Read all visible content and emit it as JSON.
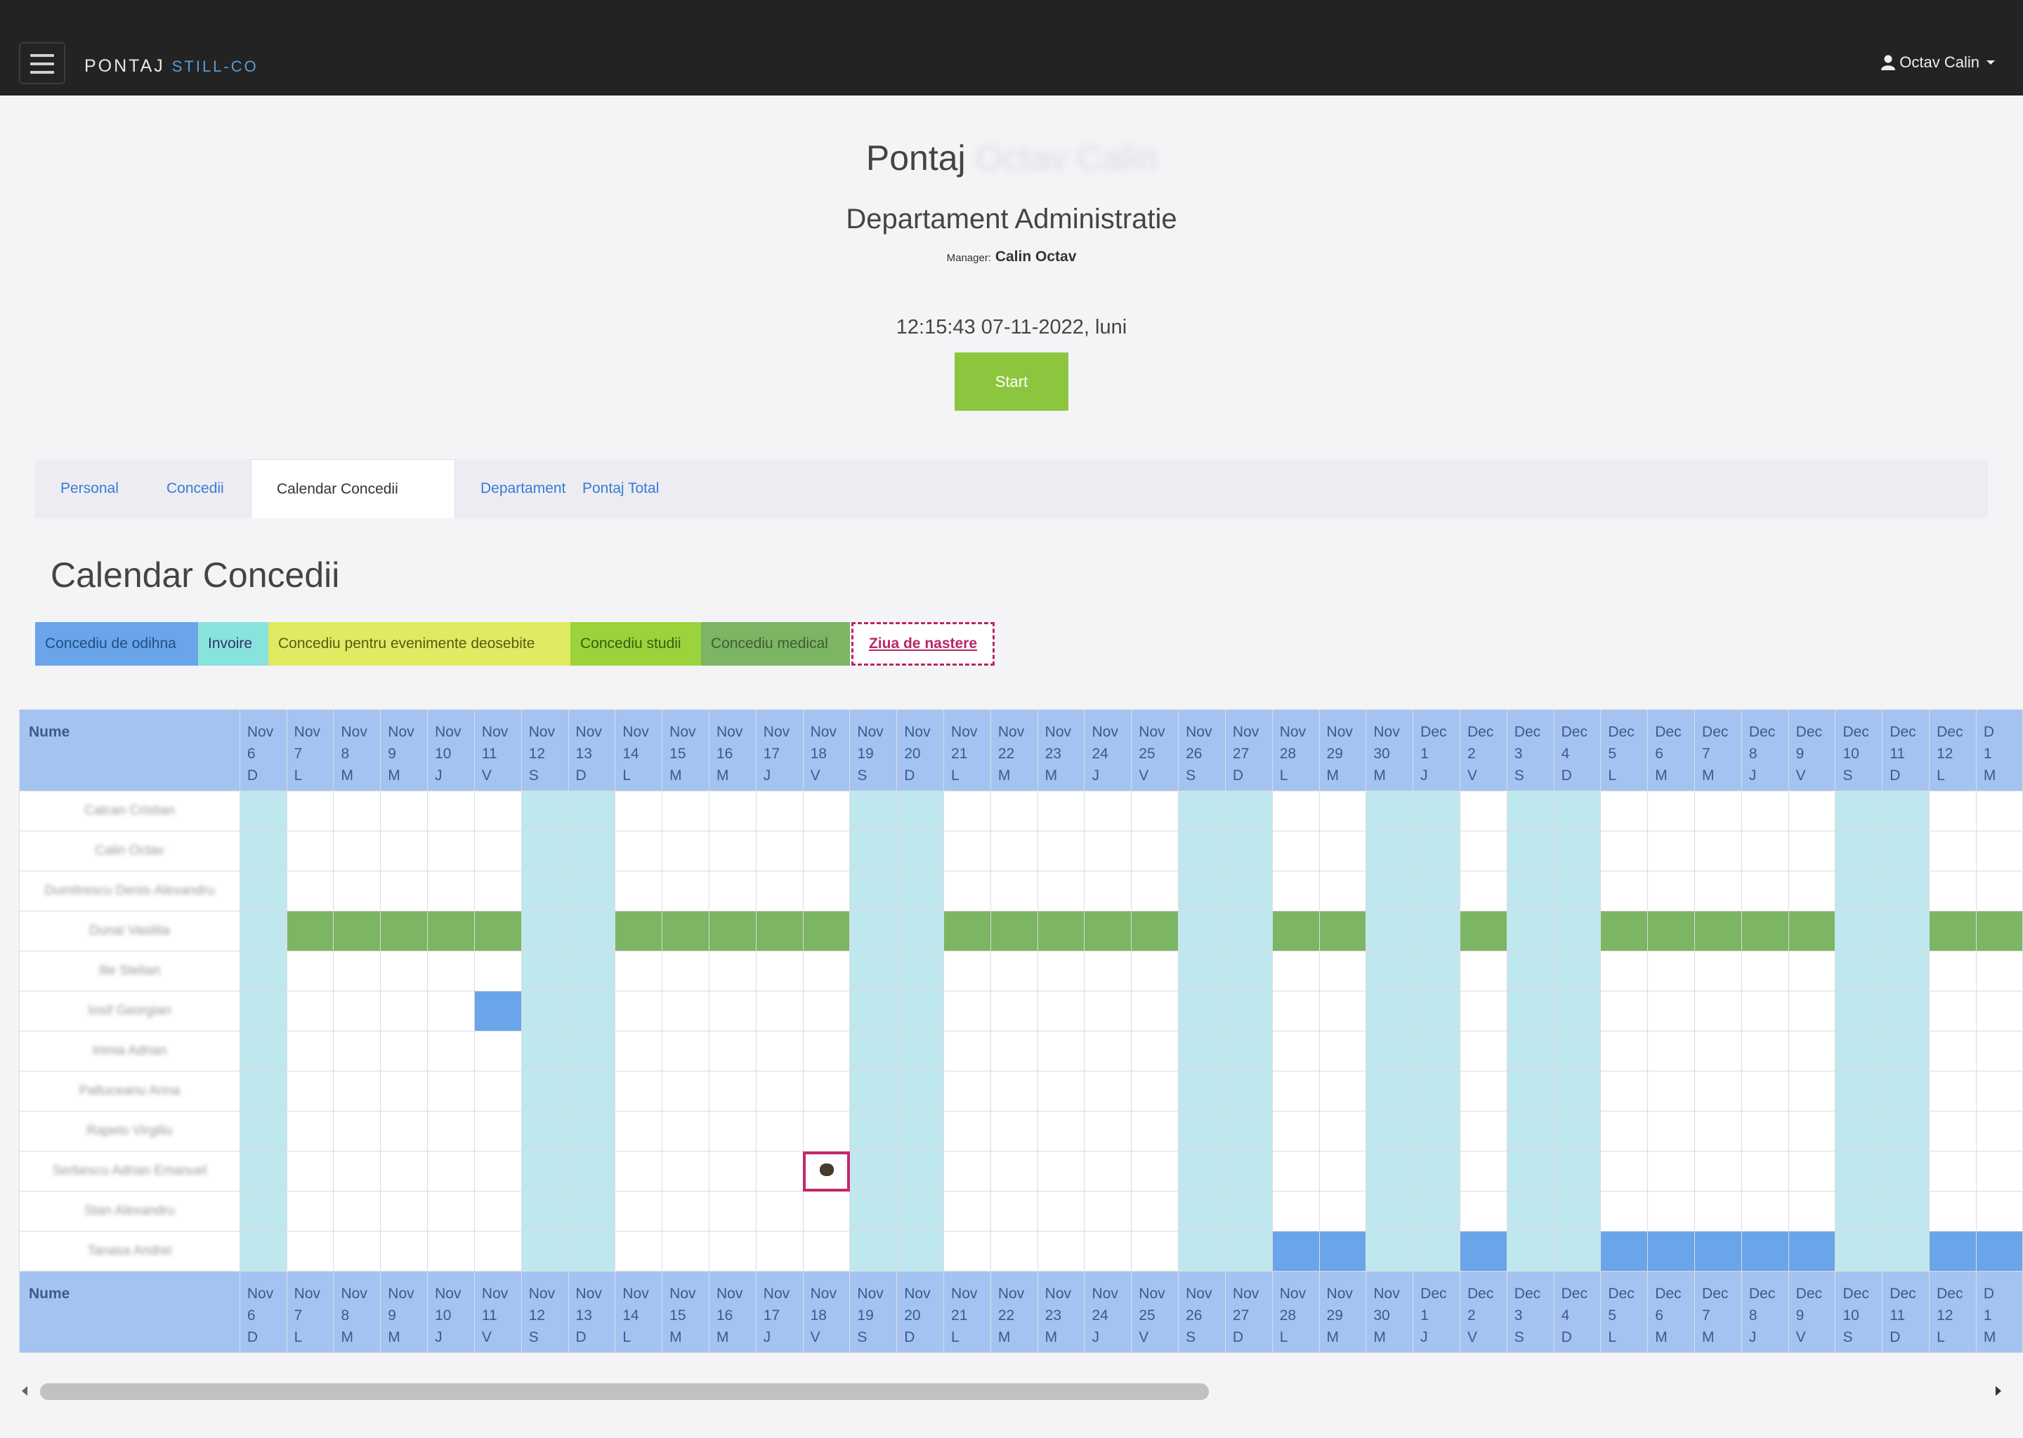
{
  "navbar": {
    "brand_main": "PONTAJ",
    "brand_accent": "STILL-CO",
    "user_name": "Octav Calin"
  },
  "header": {
    "title": "Pontaj",
    "title_blurred": "Octav Calin",
    "department": "Departament Administratie",
    "manager_label": "Manager:",
    "manager_name": "Calin Octav",
    "clock": "12:15:43 07-11-2022, luni",
    "start_label": "Start"
  },
  "tabs": [
    {
      "label": "Personal",
      "active": false
    },
    {
      "label": "Concedii",
      "active": false
    },
    {
      "label": "Calendar Concedii",
      "active": true
    },
    {
      "label": "Departament",
      "active": false
    },
    {
      "label": "Pontaj Total",
      "active": false
    }
  ],
  "section_title": "Calendar Concedii",
  "legend": {
    "odihna": "Concediu de odihna",
    "invoire": "Invoire",
    "evenimente": "Concediu pentru evenimente deosebite",
    "studii": "Concediu studii",
    "medical": "Concediu medical",
    "nastere": "Ziua de nastere"
  },
  "colors": {
    "odihna": "#6aa4e9",
    "invoire": "#89e3dd",
    "evenimente": "#e0ea63",
    "studii": "#9cd33c",
    "medical": "#7cb564",
    "nastere": "#b82767",
    "weekend": "#bfe7ee",
    "header": "#a4c3f1",
    "start": "#8cc63f"
  },
  "table": {
    "name_header": "Nume",
    "days": [
      {
        "m": "Nov",
        "d": "6",
        "w": "D"
      },
      {
        "m": "Nov",
        "d": "7",
        "w": "L"
      },
      {
        "m": "Nov",
        "d": "8",
        "w": "M"
      },
      {
        "m": "Nov",
        "d": "9",
        "w": "M"
      },
      {
        "m": "Nov",
        "d": "10",
        "w": "J"
      },
      {
        "m": "Nov",
        "d": "11",
        "w": "V"
      },
      {
        "m": "Nov",
        "d": "12",
        "w": "S"
      },
      {
        "m": "Nov",
        "d": "13",
        "w": "D"
      },
      {
        "m": "Nov",
        "d": "14",
        "w": "L"
      },
      {
        "m": "Nov",
        "d": "15",
        "w": "M"
      },
      {
        "m": "Nov",
        "d": "16",
        "w": "M"
      },
      {
        "m": "Nov",
        "d": "17",
        "w": "J"
      },
      {
        "m": "Nov",
        "d": "18",
        "w": "V"
      },
      {
        "m": "Nov",
        "d": "19",
        "w": "S"
      },
      {
        "m": "Nov",
        "d": "20",
        "w": "D"
      },
      {
        "m": "Nov",
        "d": "21",
        "w": "L"
      },
      {
        "m": "Nov",
        "d": "22",
        "w": "M"
      },
      {
        "m": "Nov",
        "d": "23",
        "w": "M"
      },
      {
        "m": "Nov",
        "d": "24",
        "w": "J"
      },
      {
        "m": "Nov",
        "d": "25",
        "w": "V"
      },
      {
        "m": "Nov",
        "d": "26",
        "w": "S"
      },
      {
        "m": "Nov",
        "d": "27",
        "w": "D"
      },
      {
        "m": "Nov",
        "d": "28",
        "w": "L"
      },
      {
        "m": "Nov",
        "d": "29",
        "w": "M"
      },
      {
        "m": "Nov",
        "d": "30",
        "w": "M"
      },
      {
        "m": "Dec",
        "d": "1",
        "w": "J"
      },
      {
        "m": "Dec",
        "d": "2",
        "w": "V"
      },
      {
        "m": "Dec",
        "d": "3",
        "w": "S"
      },
      {
        "m": "Dec",
        "d": "4",
        "w": "D"
      },
      {
        "m": "Dec",
        "d": "5",
        "w": "L"
      },
      {
        "m": "Dec",
        "d": "6",
        "w": "M"
      },
      {
        "m": "Dec",
        "d": "7",
        "w": "M"
      },
      {
        "m": "Dec",
        "d": "8",
        "w": "J"
      },
      {
        "m": "Dec",
        "d": "9",
        "w": "V"
      },
      {
        "m": "Dec",
        "d": "10",
        "w": "S"
      },
      {
        "m": "Dec",
        "d": "11",
        "w": "D"
      },
      {
        "m": "Dec",
        "d": "12",
        "w": "L"
      },
      {
        "m": "D",
        "d": "1",
        "w": "M"
      }
    ],
    "highlight_days": [
      0,
      6,
      7,
      13,
      14,
      20,
      21,
      24,
      25,
      27,
      28,
      34,
      35
    ],
    "employees": [
      {
        "name": "Calcan Cristian",
        "medical": [],
        "odihna": [],
        "birthday": null
      },
      {
        "name": "Calin Octav",
        "medical": [],
        "odihna": [],
        "birthday": null
      },
      {
        "name": "Dumitrescu Denis-Alexandru",
        "medical": [],
        "odihna": [],
        "birthday": null
      },
      {
        "name": "Dunai Vasilita",
        "medical": [
          1,
          2,
          3,
          4,
          5,
          8,
          9,
          10,
          11,
          12,
          15,
          16,
          17,
          18,
          19,
          22,
          23,
          26,
          29,
          30,
          31,
          32,
          33,
          36,
          37
        ],
        "odihna": [],
        "birthday": null
      },
      {
        "name": "Ilie Stelian",
        "medical": [],
        "odihna": [],
        "birthday": null
      },
      {
        "name": "Iosif Georgian",
        "medical": [],
        "odihna": [
          5
        ],
        "birthday": null
      },
      {
        "name": "Irimia Adrian",
        "medical": [],
        "odihna": [],
        "birthday": null
      },
      {
        "name": "Paltuceanu Anna",
        "medical": [],
        "odihna": [],
        "birthday": null
      },
      {
        "name": "Rapelo Virgiliu",
        "medical": [],
        "odihna": [],
        "birthday": null
      },
      {
        "name": "Serbescu Adrian Emanuel",
        "medical": [],
        "odihna": [],
        "birthday": 12
      },
      {
        "name": "Stan Alexandru",
        "medical": [],
        "odihna": [],
        "birthday": null
      },
      {
        "name": "Tanasa Andrei",
        "medical": [],
        "odihna": [
          22,
          23,
          26,
          29,
          30,
          31,
          32,
          33,
          36,
          37
        ],
        "birthday": null
      }
    ]
  }
}
